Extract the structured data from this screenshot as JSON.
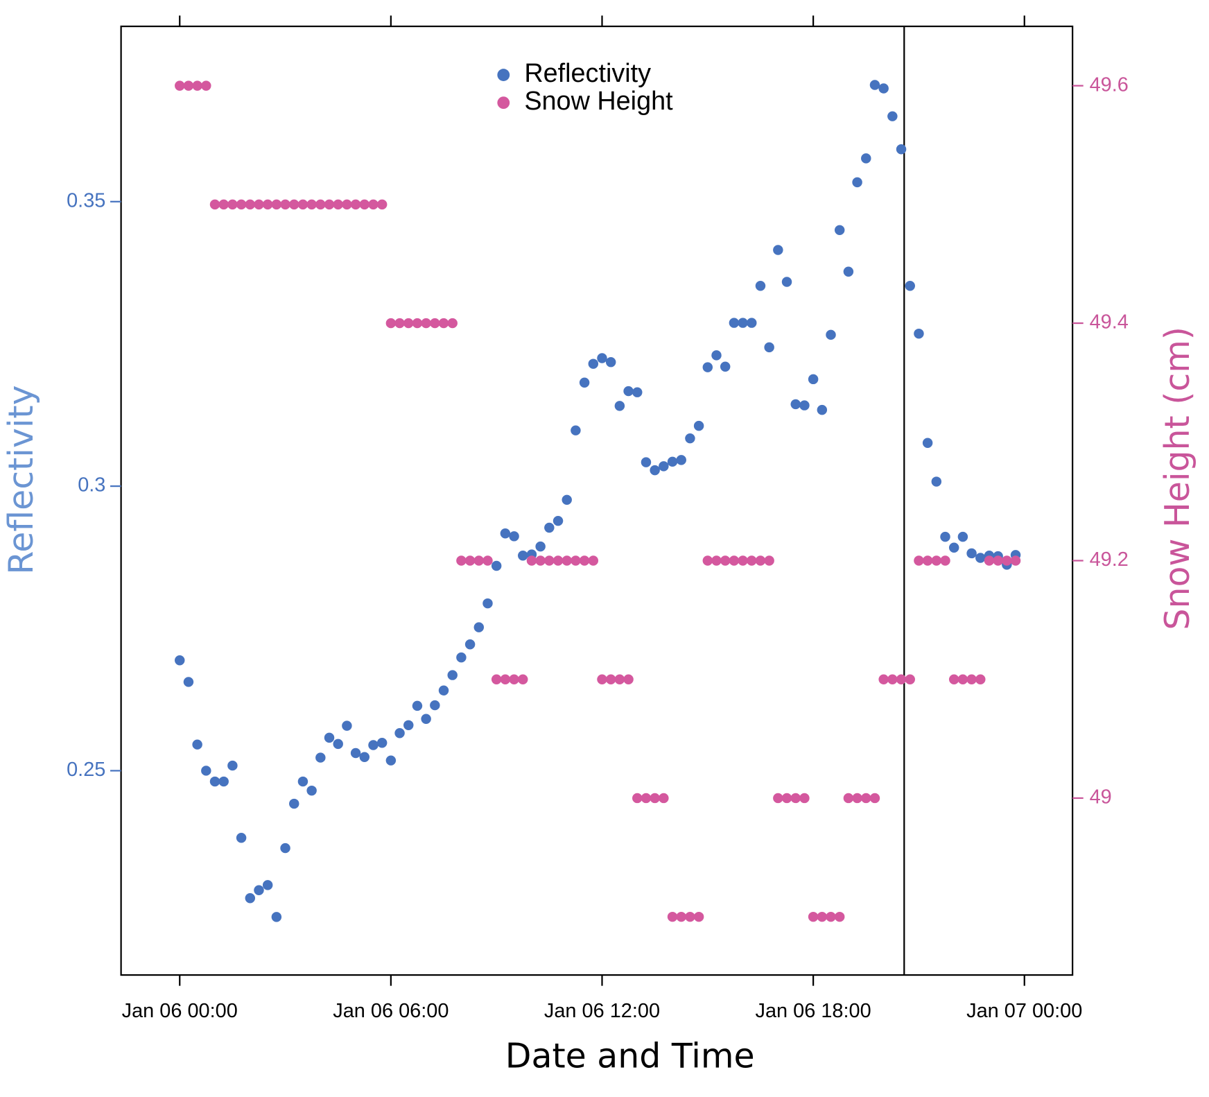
{
  "chart_data": {
    "type": "scatter",
    "xlabel": "Date and Time",
    "ylabel": "Reflectivity",
    "y2label": "Snow Height (cm)",
    "legend": "top",
    "x": [
      "Jan 06 00:00",
      "Jan 06 00:15",
      "Jan 06 00:30",
      "Jan 06 00:45",
      "Jan 06 01:00",
      "Jan 06 01:15",
      "Jan 06 01:30",
      "Jan 06 01:45",
      "Jan 06 02:00",
      "Jan 06 02:15",
      "Jan 06 02:30",
      "Jan 06 02:45",
      "Jan 06 03:00",
      "Jan 06 03:15",
      "Jan 06 03:30",
      "Jan 06 03:45",
      "Jan 06 04:00",
      "Jan 06 04:15",
      "Jan 06 04:30",
      "Jan 06 04:45",
      "Jan 06 05:00",
      "Jan 06 05:15",
      "Jan 06 05:30",
      "Jan 06 05:45",
      "Jan 06 06:00",
      "Jan 06 06:15",
      "Jan 06 06:30",
      "Jan 06 06:45",
      "Jan 06 07:00",
      "Jan 06 07:15",
      "Jan 06 07:30",
      "Jan 06 07:45",
      "Jan 06 08:00",
      "Jan 06 08:15",
      "Jan 06 08:30",
      "Jan 06 08:45",
      "Jan 06 09:00",
      "Jan 06 09:15",
      "Jan 06 09:30",
      "Jan 06 09:45",
      "Jan 06 10:00",
      "Jan 06 10:15",
      "Jan 06 10:30",
      "Jan 06 10:45",
      "Jan 06 11:00",
      "Jan 06 11:15",
      "Jan 06 11:30",
      "Jan 06 11:45",
      "Jan 06 12:00",
      "Jan 06 12:15",
      "Jan 06 12:30",
      "Jan 06 12:45",
      "Jan 06 13:00",
      "Jan 06 13:15",
      "Jan 06 13:30",
      "Jan 06 13:45",
      "Jan 06 14:00",
      "Jan 06 14:15",
      "Jan 06 14:30",
      "Jan 06 14:45",
      "Jan 06 15:00",
      "Jan 06 15:15",
      "Jan 06 15:30",
      "Jan 06 15:45",
      "Jan 06 16:00",
      "Jan 06 16:15",
      "Jan 06 16:30",
      "Jan 06 16:45",
      "Jan 06 17:00",
      "Jan 06 17:15",
      "Jan 06 17:30",
      "Jan 06 17:45",
      "Jan 06 18:00",
      "Jan 06 18:15",
      "Jan 06 18:30",
      "Jan 06 18:45",
      "Jan 06 19:00",
      "Jan 06 19:15",
      "Jan 06 19:30",
      "Jan 06 19:45",
      "Jan 06 20:00",
      "Jan 06 20:15",
      "Jan 06 20:30",
      "Jan 06 20:45",
      "Jan 06 21:00",
      "Jan 06 21:15",
      "Jan 06 21:30",
      "Jan 06 21:45",
      "Jan 06 22:00",
      "Jan 06 22:15",
      "Jan 06 22:30",
      "Jan 06 22:45",
      "Jan 06 23:00",
      "Jan 06 23:15",
      "Jan 06 23:30",
      "Jan 06 23:45"
    ],
    "xlim": [
      "Jan 05 22:20",
      "Jan 07 01:22"
    ],
    "xticks": [
      "Jan 06 00:00",
      "Jan 06 06:00",
      "Jan 06 12:00",
      "Jan 06 18:00",
      "Jan 07 00:00"
    ],
    "ylim": [
      0.2141,
      0.3808
    ],
    "yticks": [
      0.25,
      0.3,
      0.35
    ],
    "y2lim": [
      48.851,
      49.65
    ],
    "y2ticks": [
      49.0,
      49.2,
      49.4,
      49.6
    ],
    "vline": "Jan 06 20:35",
    "series": [
      {
        "name": "Reflectivity",
        "color": "#4673bf",
        "values": [
          0.2694,
          0.2656,
          0.2546,
          0.25,
          0.2481,
          0.2481,
          0.2509,
          0.2382,
          0.2276,
          0.229,
          0.2299,
          0.2243,
          0.2364,
          0.2442,
          0.2481,
          0.2465,
          0.2523,
          0.2558,
          0.2547,
          0.2579,
          0.2531,
          0.2524,
          0.2545,
          0.2549,
          0.2518,
          0.2566,
          0.258,
          0.2614,
          0.2591,
          0.2615,
          0.2641,
          0.2668,
          0.2699,
          0.2722,
          0.2752,
          0.2794,
          0.286,
          0.2917,
          0.2912,
          0.2878,
          0.288,
          0.2894,
          0.2927,
          0.2939,
          0.2976,
          0.3098,
          0.3182,
          0.3215,
          0.3225,
          0.3218,
          0.3141,
          0.3167,
          0.3165,
          0.3042,
          0.3028,
          0.3035,
          0.3043,
          0.3046,
          0.3084,
          0.3106,
          0.3209,
          0.323,
          0.321,
          0.3287,
          0.3287,
          0.3287,
          0.3352,
          0.3244,
          0.3415,
          0.3359,
          0.3144,
          0.3142,
          0.3188,
          0.3134,
          0.3266,
          0.345,
          0.3377,
          0.3534,
          0.3576,
          0.3705,
          0.3699,
          0.365,
          0.3592,
          0.3352,
          0.3268,
          0.3076,
          0.3008,
          0.2911,
          0.2892,
          0.2911,
          0.2882,
          0.2874,
          0.2878,
          0.2877,
          0.2862,
          0.2879
        ]
      },
      {
        "name": "Snow Height",
        "color": "#d4589e",
        "axis": "y2",
        "values": [
          49.6,
          49.6,
          49.6,
          49.6,
          49.5,
          49.5,
          49.5,
          49.5,
          49.5,
          49.5,
          49.5,
          49.5,
          49.5,
          49.5,
          49.5,
          49.5,
          49.5,
          49.5,
          49.5,
          49.5,
          49.5,
          49.5,
          49.5,
          49.5,
          49.4,
          49.4,
          49.4,
          49.4,
          49.4,
          49.4,
          49.4,
          49.4,
          49.2,
          49.2,
          49.2,
          49.2,
          49.1,
          49.1,
          49.1,
          49.1,
          49.2,
          49.2,
          49.2,
          49.2,
          49.2,
          49.2,
          49.2,
          49.2,
          49.1,
          49.1,
          49.1,
          49.1,
          49.0,
          49.0,
          49.0,
          49.0,
          48.9,
          48.9,
          48.9,
          48.9,
          49.2,
          49.2,
          49.2,
          49.2,
          49.2,
          49.2,
          49.2,
          49.2,
          49.0,
          49.0,
          49.0,
          49.0,
          48.9,
          48.9,
          48.9,
          48.9,
          49.0,
          49.0,
          49.0,
          49.0,
          49.1,
          49.1,
          49.1,
          49.1,
          49.2,
          49.2,
          49.2,
          49.2,
          49.1,
          49.1,
          49.1,
          49.1,
          49.2,
          49.2,
          49.2,
          49.2
        ]
      }
    ],
    "ycolor": "#4673bf",
    "ylabel_color": "#6b95d3",
    "y2color": "#c9559a"
  }
}
